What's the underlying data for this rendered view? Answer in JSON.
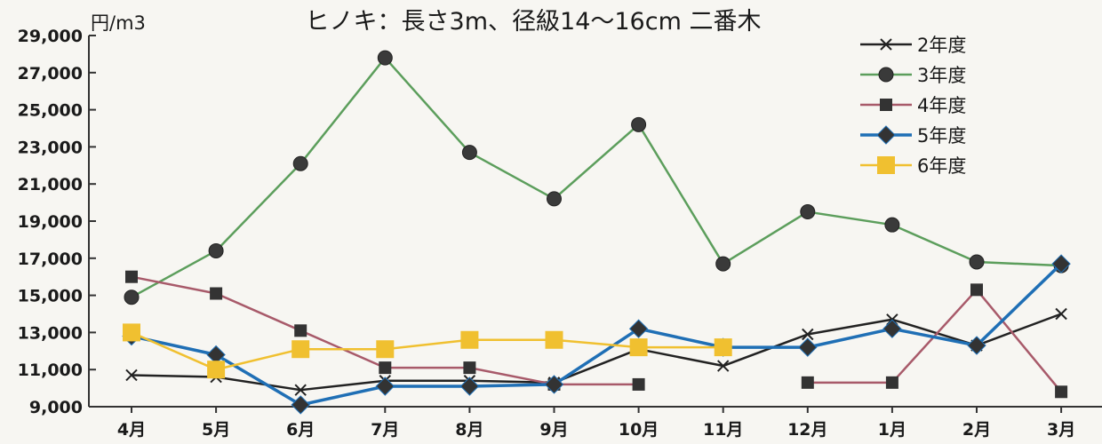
{
  "chart_data": {
    "type": "line",
    "title": "ヒノキ：長さ3m、径級14～16cm 二番木",
    "ylabel": "円/m3",
    "ylim": [
      9000,
      29000
    ],
    "yticks": [
      "29,000",
      "27,000",
      "25,000",
      "23,000",
      "21,000",
      "19,000",
      "17,000",
      "15,000",
      "13,000",
      "11,000",
      "9,000"
    ],
    "ytick_values": [
      29000,
      27000,
      25000,
      23000,
      21000,
      19000,
      17000,
      15000,
      13000,
      11000,
      9000
    ],
    "categories": [
      "4月",
      "5月",
      "6月",
      "7月",
      "8月",
      "9月",
      "10月",
      "11月",
      "12月",
      "1月",
      "2月",
      "3月"
    ],
    "legend_position": "top-right",
    "series": [
      {
        "name": "2年度",
        "color": "#222222",
        "marker": "x",
        "values": [
          10700,
          10600,
          9900,
          10400,
          10400,
          10300,
          12100,
          11200,
          12900,
          13700,
          12300,
          14000
        ]
      },
      {
        "name": "3年度",
        "color": "#5c9e5c",
        "marker": "circle",
        "values": [
          14900,
          17400,
          22100,
          27800,
          22700,
          20200,
          24200,
          16700,
          19500,
          18800,
          16800,
          16600
        ]
      },
      {
        "name": "4年度",
        "color": "#a85a6a",
        "marker": "square",
        "values": [
          16000,
          15100,
          13100,
          11100,
          11100,
          10200,
          10200,
          null,
          10300,
          10300,
          15300,
          9800
        ]
      },
      {
        "name": "5年度",
        "color": "#1f6fb5",
        "marker": "diamond",
        "values": [
          12800,
          11800,
          9100,
          10100,
          10100,
          10200,
          13200,
          12200,
          12200,
          13200,
          12300,
          16700
        ]
      },
      {
        "name": "6年度",
        "color": "#f0c030",
        "marker": "square-big",
        "values": [
          13000,
          11000,
          12100,
          12100,
          12600,
          12600,
          12200,
          12200,
          null,
          null,
          null,
          null
        ]
      }
    ]
  }
}
